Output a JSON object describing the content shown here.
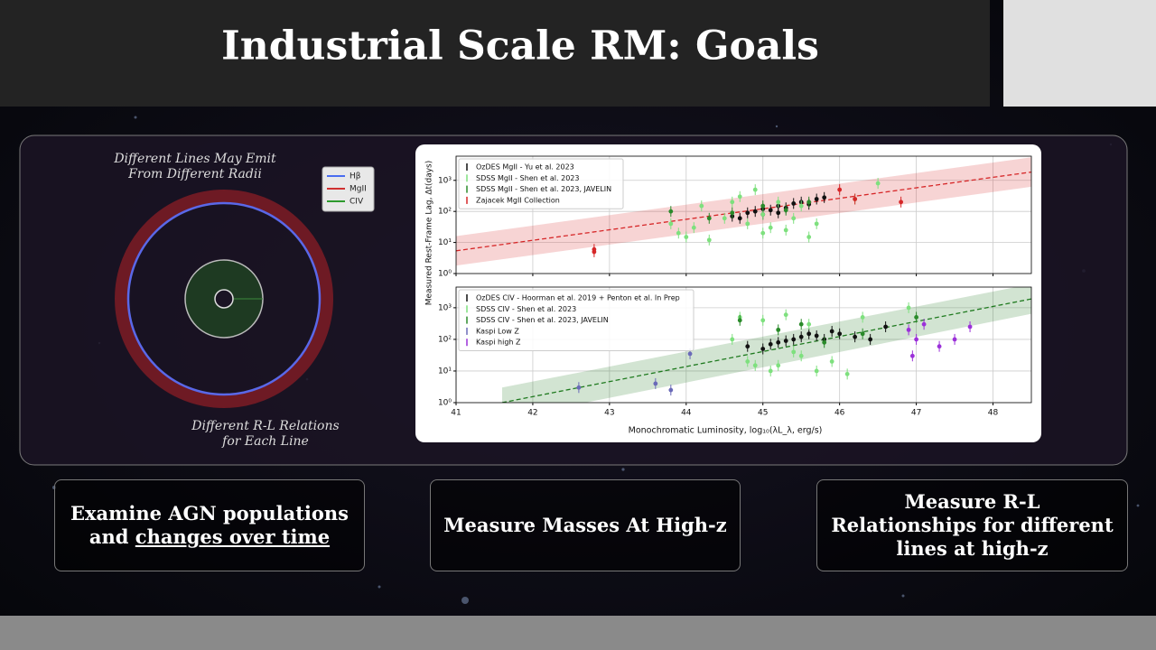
{
  "title": "Industrial Scale RM: Goals",
  "diagram": {
    "caption_top": [
      "Different Lines May Emit",
      "From Different Radii"
    ],
    "caption_bottom": [
      "Different R-L Relations",
      "for Each Line"
    ],
    "legend": [
      {
        "name": "Hβ",
        "color": "#4a6cf0"
      },
      {
        "name": "MgII",
        "color": "#d03030"
      },
      {
        "name": "CIV",
        "color": "#2e9a2e"
      }
    ]
  },
  "chart_data": [
    {
      "type": "scatter",
      "y_label": "Measured Rest-Frame Lag, Δt(days)",
      "xlim": [
        41,
        48.5
      ],
      "ylim": [
        1,
        6000
      ],
      "log_y": true,
      "grid": true,
      "legend": "upper left",
      "show_xtick_labels": false,
      "xticks": [
        41,
        42,
        43,
        44,
        45,
        46,
        47,
        48
      ],
      "yticks": [
        {
          "value": 1,
          "label": "10⁰"
        },
        {
          "value": 10,
          "label": "10¹"
        },
        {
          "value": 100,
          "label": "10²"
        },
        {
          "value": 1000,
          "label": "10³"
        }
      ],
      "fit": {
        "x": [
          41,
          48.5
        ],
        "values": [
          5.4,
          1850
        ],
        "low": [
          1.8,
          620
        ],
        "high": [
          16,
          5500
        ],
        "color": "#d62728"
      },
      "series": [
        {
          "name": "OzDES MgII - Yu et al. 2023",
          "color": "#111111",
          "x": [
            44.6,
            44.8,
            44.9,
            45.0,
            45.1,
            45.2,
            45.3,
            45.4,
            45.5,
            45.6,
            45.7,
            45.8,
            45.2,
            44.7,
            45.0
          ],
          "values": [
            70,
            90,
            100,
            120,
            110,
            150,
            130,
            180,
            200,
            170,
            250,
            280,
            90,
            60,
            80
          ]
        },
        {
          "name": "SDSS MgII - Shen et al. 2023",
          "color": "#7ee07e",
          "x": [
            43.8,
            43.9,
            44.0,
            44.1,
            44.3,
            44.5,
            44.6,
            44.8,
            44.9,
            45.0,
            45.1,
            45.2,
            45.3,
            45.4,
            45.5,
            45.6,
            45.7,
            46.2,
            46.5,
            44.2,
            44.7,
            45.0
          ],
          "values": [
            40,
            20,
            15,
            30,
            12,
            60,
            200,
            40,
            500,
            80,
            30,
            200,
            25,
            60,
            150,
            15,
            40,
            250,
            800,
            150,
            300,
            20
          ]
        },
        {
          "name": "SDSS MgII - Shen et al. 2023, JAVELIN",
          "color": "#2a8a2a",
          "x": [
            43.8,
            44.3,
            44.6,
            45.0,
            45.3,
            45.6
          ],
          "values": [
            100,
            60,
            90,
            150,
            110,
            200
          ]
        },
        {
          "name": "Zajacek MgII Collection",
          "color": "#d62728",
          "x": [
            42.8,
            42.8,
            46.0,
            46.8,
            46.2
          ],
          "values": [
            6,
            5,
            500,
            200,
            250
          ]
        }
      ]
    },
    {
      "type": "scatter",
      "x_label": "Monochromatic Luminosity, log₁₀(λL_λ, erg/s)",
      "xlim": [
        41,
        48.5
      ],
      "ylim": [
        1,
        4500
      ],
      "log_y": true,
      "grid": true,
      "legend": "upper left",
      "show_xtick_labels": true,
      "xticks": [
        41,
        42,
        43,
        44,
        45,
        46,
        47,
        48
      ],
      "yticks": [
        {
          "value": 1,
          "label": "10⁰"
        },
        {
          "value": 10,
          "label": "10¹"
        },
        {
          "value": 100,
          "label": "10²"
        },
        {
          "value": 1000,
          "label": "10³"
        }
      ],
      "fit": {
        "x": [
          41.6,
          48.5
        ],
        "values": [
          1,
          1900
        ],
        "low": [
          0.3,
          640
        ],
        "high": [
          3,
          5600
        ],
        "color": "#1f7a1f"
      },
      "series": [
        {
          "name": "OzDES CIV - Hoorman et al. 2019 + Penton et al. In Prep",
          "color": "#111111",
          "x": [
            44.8,
            45.0,
            45.2,
            45.4,
            45.5,
            45.6,
            45.7,
            45.8,
            45.9,
            46.0,
            46.2,
            46.4,
            46.6,
            45.3,
            45.1
          ],
          "values": [
            60,
            50,
            80,
            100,
            120,
            150,
            130,
            100,
            180,
            150,
            120,
            100,
            250,
            90,
            70
          ]
        },
        {
          "name": "SDSS CIV - Shen et al. 2023",
          "color": "#7ee07e",
          "x": [
            44.7,
            44.8,
            44.9,
            45.0,
            45.1,
            45.3,
            45.5,
            45.6,
            45.7,
            45.9,
            46.1,
            46.3,
            46.9,
            44.6,
            45.2,
            45.4
          ],
          "values": [
            500,
            20,
            15,
            400,
            10,
            600,
            30,
            300,
            10,
            20,
            8,
            500,
            1000,
            100,
            15,
            40
          ]
        },
        {
          "name": "SDSS CIV - Shen et al. 2023, JAVELIN",
          "color": "#2a8a2a",
          "x": [
            44.7,
            45.2,
            45.5,
            45.8,
            46.3,
            47.0
          ],
          "values": [
            400,
            200,
            300,
            80,
            150,
            500
          ]
        },
        {
          "name": "Kaspi Low Z",
          "color": "#6a6ab8",
          "x": [
            42.6,
            43.6,
            43.8,
            44.05
          ],
          "values": [
            3,
            4,
            2.5,
            35
          ]
        },
        {
          "name": "Kaspi high Z",
          "color": "#9b30d9",
          "x": [
            46.9,
            47.0,
            47.1,
            47.3,
            47.5,
            47.7,
            46.95
          ],
          "values": [
            200,
            100,
            300,
            60,
            100,
            250,
            30
          ]
        }
      ]
    }
  ],
  "boxes": [
    {
      "text": "Examine AGN populations and",
      "underlined": "changes over time"
    },
    {
      "text": "Measure Masses At High-z"
    },
    {
      "text": "Measure R-L Relationships for different lines at high-z"
    }
  ]
}
